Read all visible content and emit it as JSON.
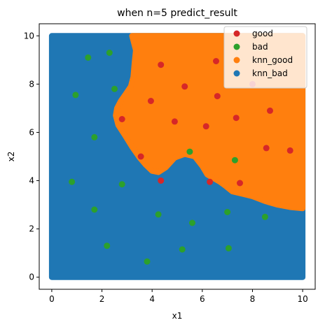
{
  "chart_data": {
    "type": "scatter",
    "title": "when n=5 predict_result",
    "xlabel": "x1",
    "ylabel": "x2",
    "xlim": [
      -0.5,
      10.5
    ],
    "ylim": [
      -0.5,
      10.5
    ],
    "xticks": [
      0,
      2,
      4,
      6,
      8,
      10
    ],
    "yticks": [
      0,
      2,
      4,
      6,
      8,
      10
    ],
    "xtick_labels": [
      "0",
      "2",
      "4",
      "6",
      "8",
      "10"
    ],
    "ytick_labels": [
      "0",
      "2",
      "4",
      "6",
      "8",
      "10"
    ],
    "grid": false,
    "legend_position": "top-right",
    "colors": {
      "good": "#d62728",
      "bad": "#2ca02c",
      "knn_good": "#ff7f0e",
      "knn_bad": "#1f77b4"
    },
    "legend": [
      "good",
      "bad",
      "knn_good",
      "knn_bad"
    ],
    "decision_region": {
      "domain": [
        [
          0,
          10
        ],
        [
          0,
          10
        ]
      ],
      "knn_good_boundary": [
        [
          3.2,
          10.0
        ],
        [
          3.35,
          9.4
        ],
        [
          3.3,
          8.9
        ],
        [
          3.25,
          8.3
        ],
        [
          3.15,
          7.9
        ],
        [
          2.95,
          7.6
        ],
        [
          2.75,
          7.3
        ],
        [
          2.6,
          7.0
        ],
        [
          2.55,
          6.7
        ],
        [
          2.65,
          6.3
        ],
        [
          2.9,
          5.9
        ],
        [
          3.2,
          5.4
        ],
        [
          3.5,
          4.95
        ],
        [
          3.75,
          4.65
        ],
        [
          4.0,
          4.4
        ],
        [
          4.25,
          4.35
        ],
        [
          4.55,
          4.55
        ],
        [
          4.9,
          4.95
        ],
        [
          5.3,
          5.1
        ],
        [
          5.7,
          5.0
        ],
        [
          6.0,
          4.6
        ],
        [
          6.2,
          4.25
        ],
        [
          6.45,
          4.1
        ],
        [
          6.7,
          3.95
        ],
        [
          6.9,
          3.8
        ],
        [
          7.2,
          3.55
        ],
        [
          7.6,
          3.45
        ],
        [
          8.0,
          3.35
        ],
        [
          8.5,
          3.15
        ],
        [
          9.0,
          3.0
        ],
        [
          9.5,
          2.9
        ],
        [
          10.0,
          2.85
        ],
        [
          10.0,
          10.0
        ]
      ]
    },
    "series": [
      {
        "name": "good",
        "points": [
          [
            4.35,
            8.8
          ],
          [
            6.55,
            8.95
          ],
          [
            5.3,
            7.9
          ],
          [
            6.6,
            7.5
          ],
          [
            3.95,
            7.3
          ],
          [
            2.8,
            6.55
          ],
          [
            4.9,
            6.45
          ],
          [
            7.35,
            6.6
          ],
          [
            8.7,
            6.9
          ],
          [
            6.15,
            6.25
          ],
          [
            8.55,
            5.35
          ],
          [
            9.5,
            5.25
          ],
          [
            3.55,
            5.0
          ],
          [
            4.35,
            4.0
          ],
          [
            6.3,
            3.95
          ],
          [
            7.5,
            3.9
          ],
          [
            8.0,
            8.0
          ]
        ]
      },
      {
        "name": "bad",
        "points": [
          [
            1.45,
            9.1
          ],
          [
            2.3,
            9.3
          ],
          [
            0.95,
            7.55
          ],
          [
            2.5,
            7.8
          ],
          [
            1.7,
            5.8
          ],
          [
            5.5,
            5.2
          ],
          [
            7.3,
            4.85
          ],
          [
            0.8,
            3.95
          ],
          [
            2.8,
            3.85
          ],
          [
            1.7,
            2.8
          ],
          [
            4.25,
            2.6
          ],
          [
            5.6,
            2.25
          ],
          [
            7.0,
            2.7
          ],
          [
            8.5,
            2.5
          ],
          [
            2.2,
            1.3
          ],
          [
            5.2,
            1.15
          ],
          [
            7.05,
            1.2
          ],
          [
            3.8,
            0.65
          ]
        ]
      }
    ]
  }
}
